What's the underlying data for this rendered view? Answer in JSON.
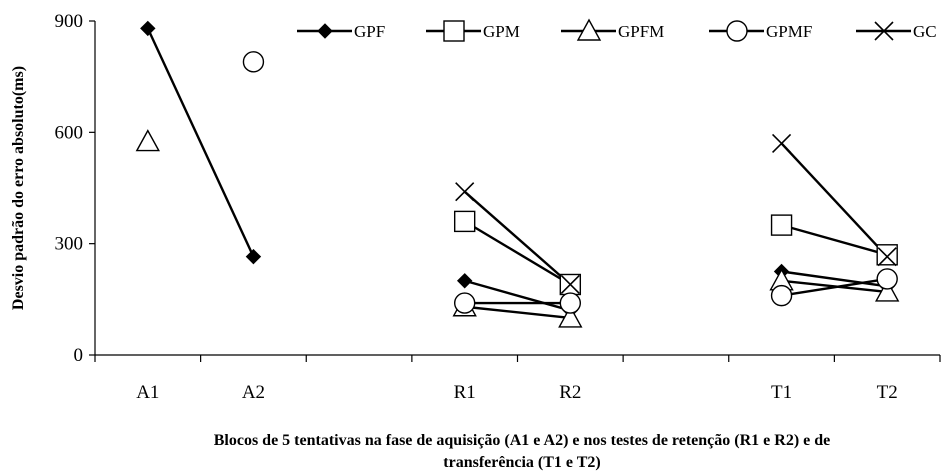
{
  "chart_data": {
    "type": "line",
    "title": "",
    "ylabel": "Desvio padrão do erro absoluto(ms)",
    "xlabel_line1": "Blocos de 5 tentativas na fase de aquisição (A1 e A2) e nos testes de retenção (R1 e R2) e de",
    "xlabel_line2": "transferência (T1 e T2)",
    "ylim": [
      0,
      900
    ],
    "yticks": [
      "0",
      "300",
      "600",
      "900"
    ],
    "categories": [
      "A1",
      "A2",
      "",
      "R1",
      "R2",
      "",
      "T1",
      "T2"
    ],
    "legend_position": "top",
    "series": [
      {
        "name": "GPF",
        "marker": "diamond-filled",
        "values": [
          880,
          265,
          null,
          200,
          120,
          null,
          225,
          185
        ]
      },
      {
        "name": "GPM",
        "marker": "square-open",
        "values": [
          null,
          null,
          null,
          360,
          190,
          null,
          350,
          270
        ]
      },
      {
        "name": "GPFM",
        "marker": "triangle-open",
        "values": [
          575,
          null,
          null,
          130,
          100,
          null,
          200,
          170
        ]
      },
      {
        "name": "GPMF",
        "marker": "circle-open",
        "values": [
          null,
          790,
          null,
          140,
          140,
          null,
          160,
          205
        ]
      },
      {
        "name": "GC",
        "marker": "x",
        "values": [
          null,
          null,
          null,
          440,
          190,
          null,
          570,
          265
        ]
      }
    ]
  }
}
